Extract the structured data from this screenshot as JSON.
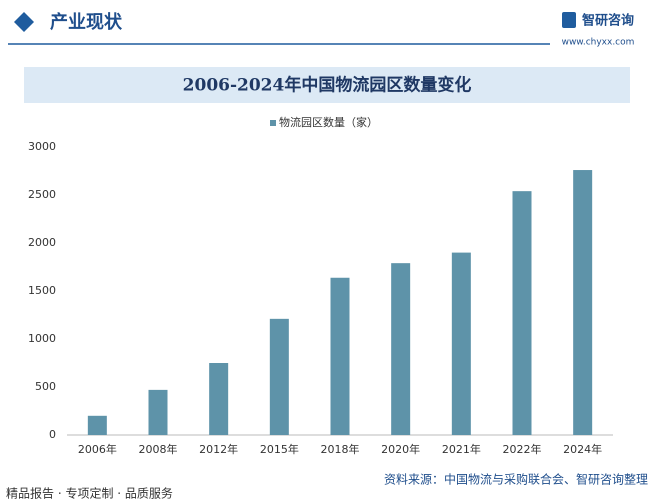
{
  "header": {
    "section": "产业现状",
    "brand": "智研咨询",
    "url": "www.chyxx.com"
  },
  "chart_data": {
    "type": "bar",
    "title": "2006-2024年中国物流园区数量变化",
    "categories": [
      "2006年",
      "2008年",
      "2012年",
      "2015年",
      "2018年",
      "2020年",
      "2021年",
      "2022年",
      "2024年"
    ],
    "series": [
      {
        "name": "物流园区数量（家）",
        "color": "#5e93a9",
        "values": [
          200,
          470,
          750,
          1210,
          1638,
          1790,
          1900,
          2540,
          2760
        ]
      }
    ],
    "ylim": [
      0,
      3000
    ],
    "yticks": [
      0,
      500,
      1000,
      1500,
      2000,
      2500,
      3000
    ],
    "grid": false,
    "legend": "top"
  },
  "footer": {
    "slogan": "精品报告 · 专项定制 · 品质服务",
    "source": "资料来源：中国物流与采购联合会、智研咨询整理"
  }
}
